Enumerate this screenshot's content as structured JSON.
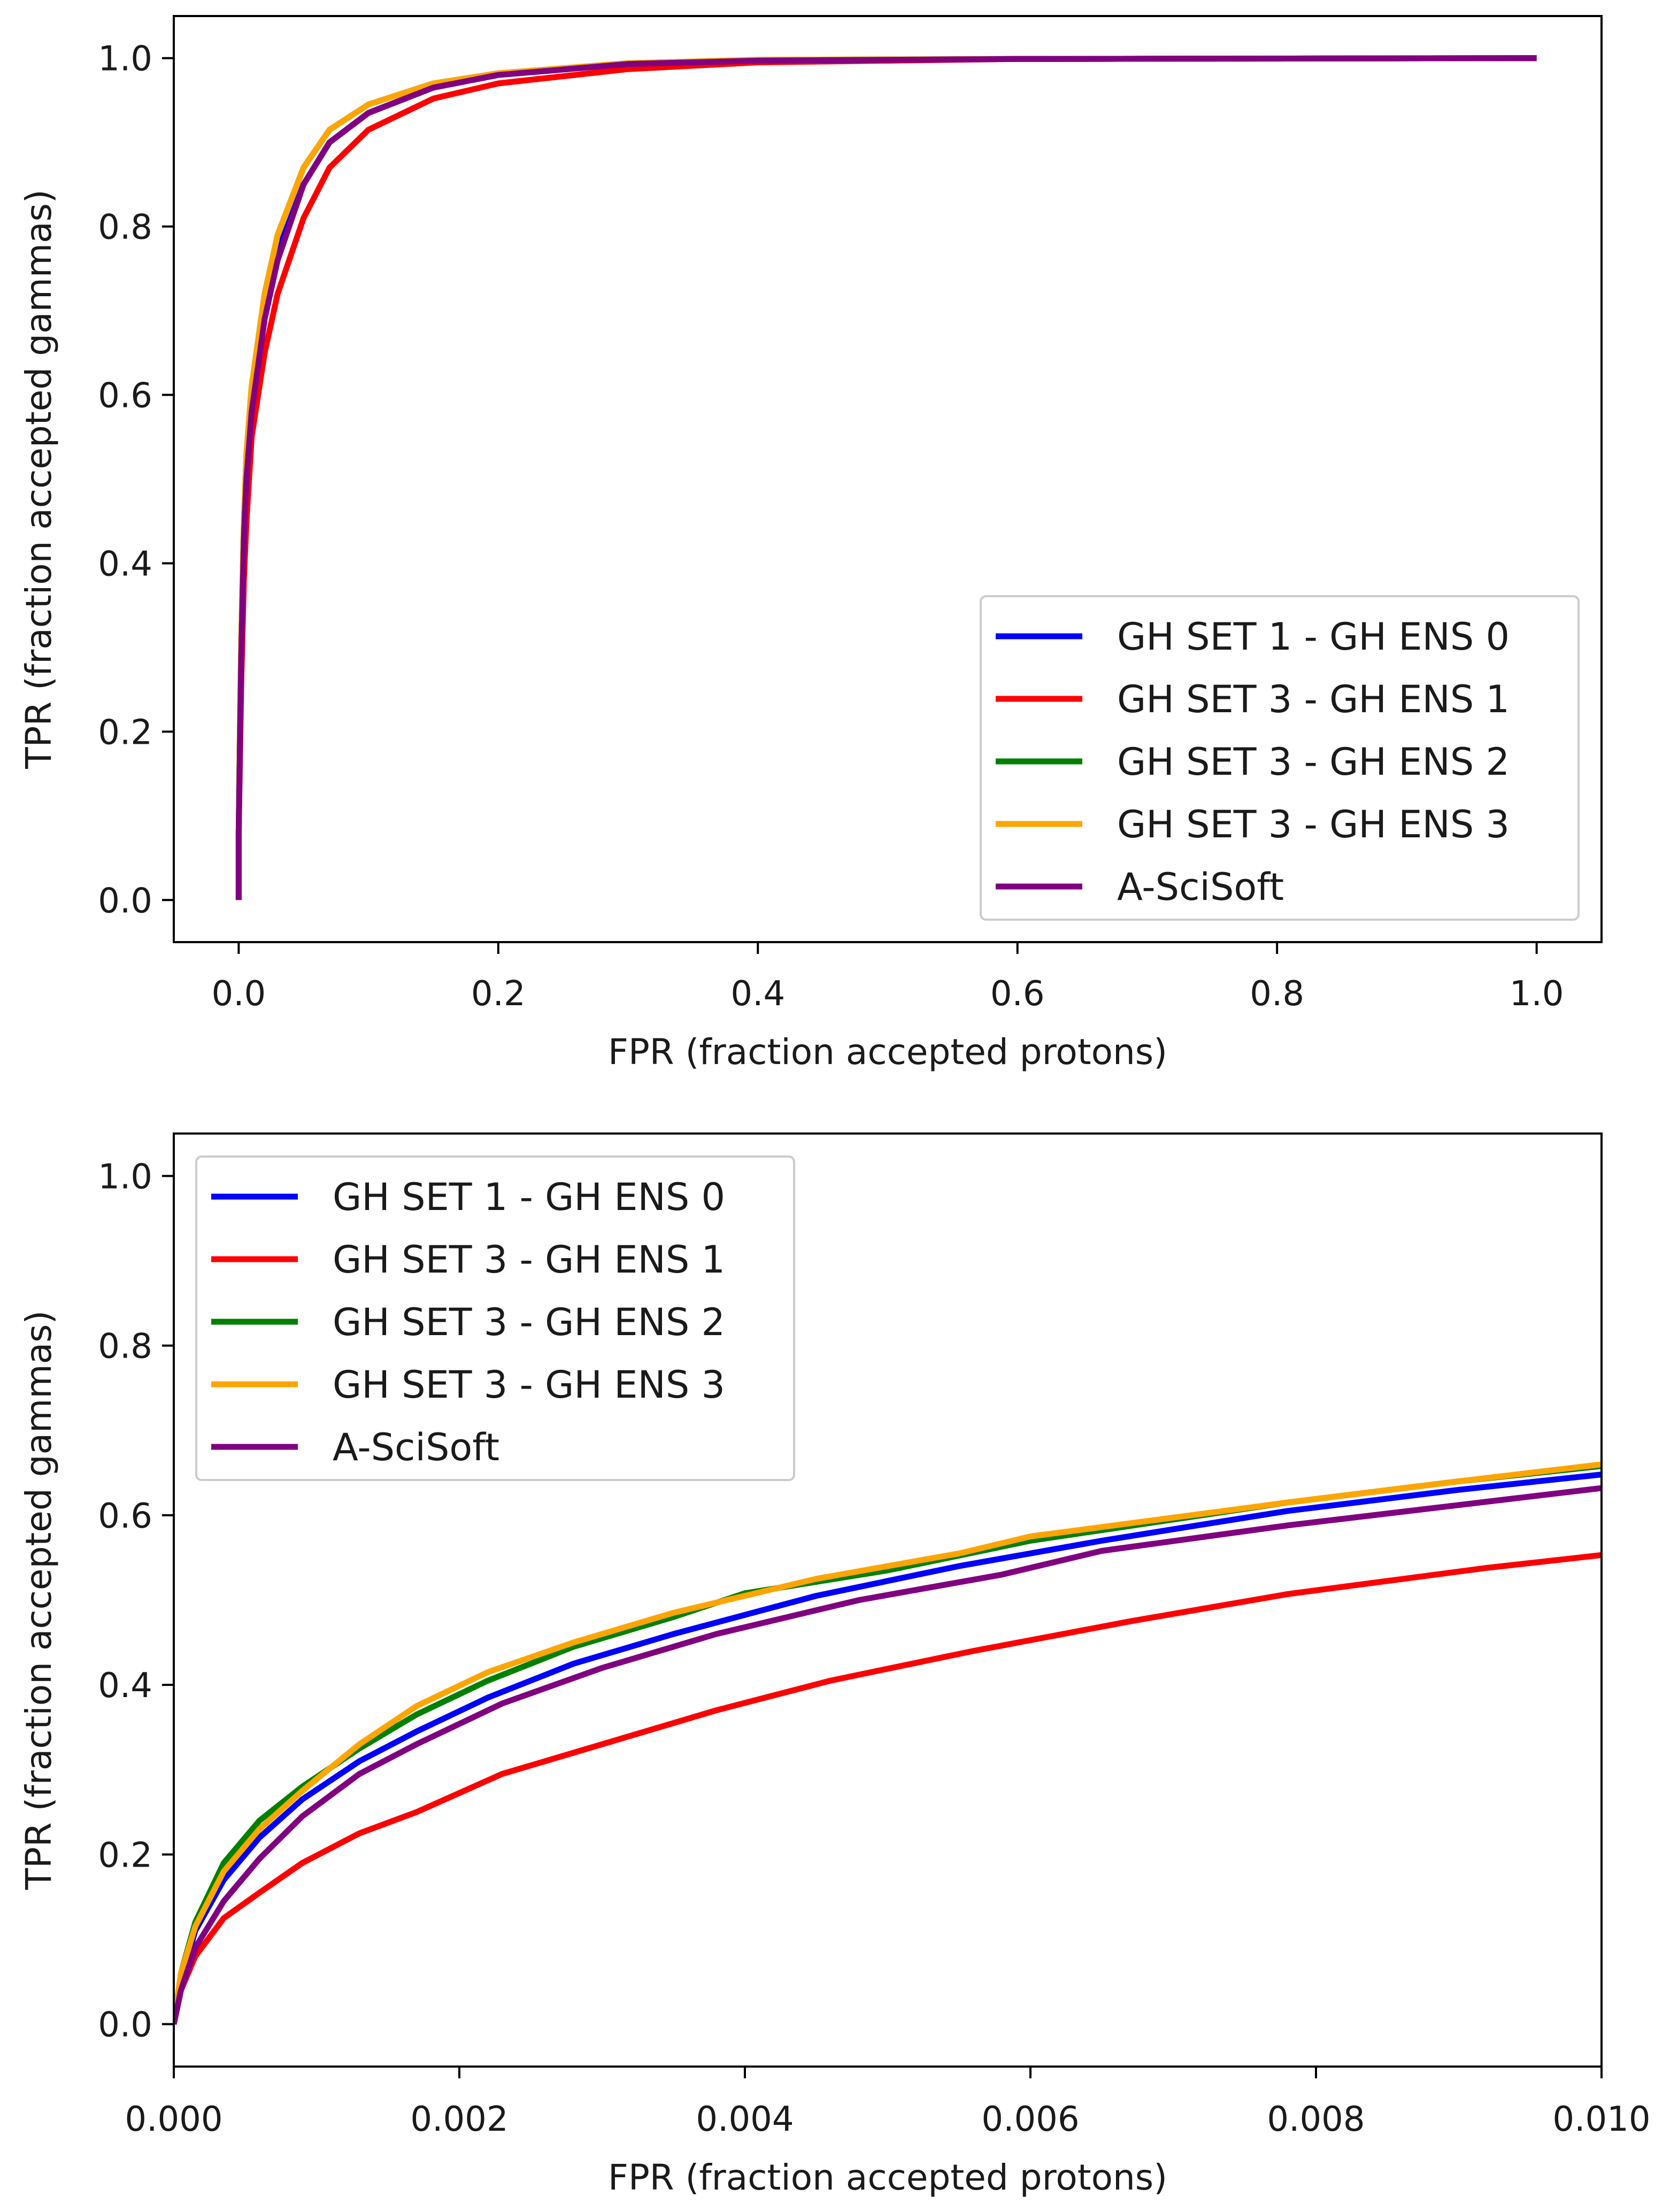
{
  "chart_data": [
    {
      "type": "line",
      "title": "",
      "xlabel": "FPR (fraction accepted protons)",
      "ylabel": "TPR (fraction accepted gammas)",
      "xlim": [
        -0.05,
        1.05
      ],
      "ylim": [
        -0.05,
        1.05
      ],
      "xticks": [
        0.0,
        0.2,
        0.4,
        0.6,
        0.8,
        1.0
      ],
      "xtick_labels": [
        "0.0",
        "0.2",
        "0.4",
        "0.6",
        "0.8",
        "1.0"
      ],
      "yticks": [
        0.0,
        0.2,
        0.4,
        0.6,
        0.8,
        1.0
      ],
      "ytick_labels": [
        "0.0",
        "0.2",
        "0.4",
        "0.6",
        "0.8",
        "1.0"
      ],
      "grid": false,
      "legend_position": "lower-right",
      "series": [
        {
          "name": "GH SET 1 - GH ENS 0",
          "color": "#0000ff",
          "points": [
            [
              0,
              0
            ],
            [
              0,
              0.08
            ],
            [
              0.001,
              0.2
            ],
            [
              0.002,
              0.3
            ],
            [
              0.004,
              0.44
            ],
            [
              0.006,
              0.51
            ],
            [
              0.01,
              0.59
            ],
            [
              0.02,
              0.7
            ],
            [
              0.03,
              0.77
            ],
            [
              0.05,
              0.85
            ],
            [
              0.07,
              0.9
            ],
            [
              0.1,
              0.935
            ],
            [
              0.15,
              0.965
            ],
            [
              0.2,
              0.98
            ],
            [
              0.3,
              0.993
            ],
            [
              0.4,
              0.997
            ],
            [
              0.6,
              0.999
            ],
            [
              1.0,
              1.0
            ]
          ]
        },
        {
          "name": "GH SET 3 - GH ENS 1",
          "color": "#ff0000",
          "points": [
            [
              0,
              0
            ],
            [
              0,
              0.08
            ],
            [
              0.001,
              0.17
            ],
            [
              0.002,
              0.26
            ],
            [
              0.004,
              0.38
            ],
            [
              0.006,
              0.45
            ],
            [
              0.01,
              0.55
            ],
            [
              0.02,
              0.65
            ],
            [
              0.03,
              0.72
            ],
            [
              0.05,
              0.81
            ],
            [
              0.07,
              0.87
            ],
            [
              0.1,
              0.915
            ],
            [
              0.15,
              0.952
            ],
            [
              0.2,
              0.97
            ],
            [
              0.3,
              0.987
            ],
            [
              0.4,
              0.995
            ],
            [
              0.6,
              0.999
            ],
            [
              1.0,
              1.0
            ]
          ]
        },
        {
          "name": "GH SET 3 - GH ENS 2",
          "color": "#008000",
          "points": [
            [
              0,
              0
            ],
            [
              0,
              0.08
            ],
            [
              0.001,
              0.21
            ],
            [
              0.002,
              0.31
            ],
            [
              0.004,
              0.45
            ],
            [
              0.006,
              0.53
            ],
            [
              0.01,
              0.61
            ],
            [
              0.02,
              0.72
            ],
            [
              0.03,
              0.79
            ],
            [
              0.05,
              0.87
            ],
            [
              0.07,
              0.915
            ],
            [
              0.1,
              0.945
            ],
            [
              0.15,
              0.97
            ],
            [
              0.2,
              0.982
            ],
            [
              0.3,
              0.994
            ],
            [
              0.4,
              0.998
            ],
            [
              0.6,
              0.999
            ],
            [
              1.0,
              1.0
            ]
          ]
        },
        {
          "name": "GH SET 3 - GH ENS 3",
          "color": "#ffa500",
          "points": [
            [
              0,
              0
            ],
            [
              0,
              0.08
            ],
            [
              0.001,
              0.21
            ],
            [
              0.002,
              0.31
            ],
            [
              0.004,
              0.45
            ],
            [
              0.006,
              0.53
            ],
            [
              0.01,
              0.61
            ],
            [
              0.02,
              0.72
            ],
            [
              0.03,
              0.79
            ],
            [
              0.05,
              0.87
            ],
            [
              0.07,
              0.915
            ],
            [
              0.1,
              0.945
            ],
            [
              0.15,
              0.97
            ],
            [
              0.2,
              0.982
            ],
            [
              0.3,
              0.994
            ],
            [
              0.4,
              0.998
            ],
            [
              0.6,
              0.999
            ],
            [
              1.0,
              1.0
            ]
          ]
        },
        {
          "name": "A-SciSoft",
          "color": "#800080",
          "points": [
            [
              0,
              0
            ],
            [
              0,
              0.08
            ],
            [
              0.001,
              0.19
            ],
            [
              0.002,
              0.29
            ],
            [
              0.004,
              0.43
            ],
            [
              0.006,
              0.5
            ],
            [
              0.01,
              0.58
            ],
            [
              0.02,
              0.69
            ],
            [
              0.03,
              0.76
            ],
            [
              0.05,
              0.85
            ],
            [
              0.07,
              0.9
            ],
            [
              0.1,
              0.935
            ],
            [
              0.15,
              0.965
            ],
            [
              0.2,
              0.98
            ],
            [
              0.3,
              0.993
            ],
            [
              0.4,
              0.997
            ],
            [
              0.6,
              0.999
            ],
            [
              1.0,
              1.0
            ]
          ]
        }
      ]
    },
    {
      "type": "line",
      "title": "",
      "xlabel": "FPR (fraction accepted protons)",
      "ylabel": "TPR (fraction accepted gammas)",
      "xlim": [
        0.0,
        0.01
      ],
      "ylim": [
        -0.05,
        1.05
      ],
      "xticks": [
        0.0,
        0.002,
        0.004,
        0.006,
        0.008,
        0.01
      ],
      "xtick_labels": [
        "0.000",
        "0.002",
        "0.004",
        "0.006",
        "0.008",
        "0.010"
      ],
      "yticks": [
        0.0,
        0.2,
        0.4,
        0.6,
        0.8,
        1.0
      ],
      "ytick_labels": [
        "0.0",
        "0.2",
        "0.4",
        "0.6",
        "0.8",
        "1.0"
      ],
      "grid": false,
      "legend_position": "top-left",
      "series": [
        {
          "name": "GH SET 1 - GH ENS 0",
          "color": "#0000ff",
          "points": [
            [
              0,
              0
            ],
            [
              5e-05,
              0.05
            ],
            [
              0.00015,
              0.11
            ],
            [
              0.00035,
              0.17
            ],
            [
              0.0006,
              0.22
            ],
            [
              0.0009,
              0.265
            ],
            [
              0.0013,
              0.31
            ],
            [
              0.0017,
              0.345
            ],
            [
              0.0022,
              0.385
            ],
            [
              0.0028,
              0.425
            ],
            [
              0.0035,
              0.46
            ],
            [
              0.0045,
              0.505
            ],
            [
              0.0055,
              0.54
            ],
            [
              0.0065,
              0.57
            ],
            [
              0.0078,
              0.605
            ],
            [
              0.009,
              0.63
            ],
            [
              0.01,
              0.648
            ]
          ]
        },
        {
          "name": "GH SET 3 - GH ENS 1",
          "color": "#ff0000",
          "points": [
            [
              0,
              0
            ],
            [
              5e-05,
              0.04
            ],
            [
              0.00015,
              0.08
            ],
            [
              0.00035,
              0.125
            ],
            [
              0.0006,
              0.155
            ],
            [
              0.0009,
              0.19
            ],
            [
              0.0013,
              0.225
            ],
            [
              0.0017,
              0.25
            ],
            [
              0.0023,
              0.295
            ],
            [
              0.003,
              0.33
            ],
            [
              0.0038,
              0.37
            ],
            [
              0.0046,
              0.405
            ],
            [
              0.0056,
              0.44
            ],
            [
              0.0067,
              0.475
            ],
            [
              0.0078,
              0.507
            ],
            [
              0.0092,
              0.538
            ],
            [
              0.01,
              0.553
            ]
          ]
        },
        {
          "name": "GH SET 3 - GH ENS 2",
          "color": "#008000",
          "points": [
            [
              0,
              0
            ],
            [
              5e-05,
              0.06
            ],
            [
              0.00015,
              0.12
            ],
            [
              0.00035,
              0.19
            ],
            [
              0.0006,
              0.24
            ],
            [
              0.0009,
              0.28
            ],
            [
              0.0013,
              0.325
            ],
            [
              0.0017,
              0.365
            ],
            [
              0.0022,
              0.405
            ],
            [
              0.0028,
              0.445
            ],
            [
              0.0035,
              0.48
            ],
            [
              0.004,
              0.508
            ],
            [
              0.005,
              0.535
            ],
            [
              0.006,
              0.57
            ],
            [
              0.0078,
              0.615
            ],
            [
              0.009,
              0.64
            ],
            [
              0.01,
              0.658
            ]
          ]
        },
        {
          "name": "GH SET 3 - GH ENS 3",
          "color": "#ffa500",
          "points": [
            [
              0,
              0
            ],
            [
              5e-05,
              0.06
            ],
            [
              0.00015,
              0.115
            ],
            [
              0.00035,
              0.18
            ],
            [
              0.0006,
              0.23
            ],
            [
              0.0009,
              0.275
            ],
            [
              0.0013,
              0.33
            ],
            [
              0.0017,
              0.375
            ],
            [
              0.0022,
              0.415
            ],
            [
              0.0028,
              0.45
            ],
            [
              0.0035,
              0.485
            ],
            [
              0.0045,
              0.525
            ],
            [
              0.0055,
              0.555
            ],
            [
              0.006,
              0.575
            ],
            [
              0.0078,
              0.615
            ],
            [
              0.009,
              0.64
            ],
            [
              0.01,
              0.66
            ]
          ]
        },
        {
          "name": "A-SciSoft",
          "color": "#800080",
          "points": [
            [
              0,
              0
            ],
            [
              5e-05,
              0.04
            ],
            [
              0.00015,
              0.09
            ],
            [
              0.00035,
              0.145
            ],
            [
              0.0006,
              0.195
            ],
            [
              0.0009,
              0.245
            ],
            [
              0.0013,
              0.295
            ],
            [
              0.0017,
              0.33
            ],
            [
              0.0023,
              0.378
            ],
            [
              0.003,
              0.42
            ],
            [
              0.0038,
              0.46
            ],
            [
              0.0048,
              0.5
            ],
            [
              0.0058,
              0.53
            ],
            [
              0.0065,
              0.558
            ],
            [
              0.0078,
              0.588
            ],
            [
              0.009,
              0.612
            ],
            [
              0.01,
              0.632
            ]
          ]
        }
      ]
    }
  ]
}
